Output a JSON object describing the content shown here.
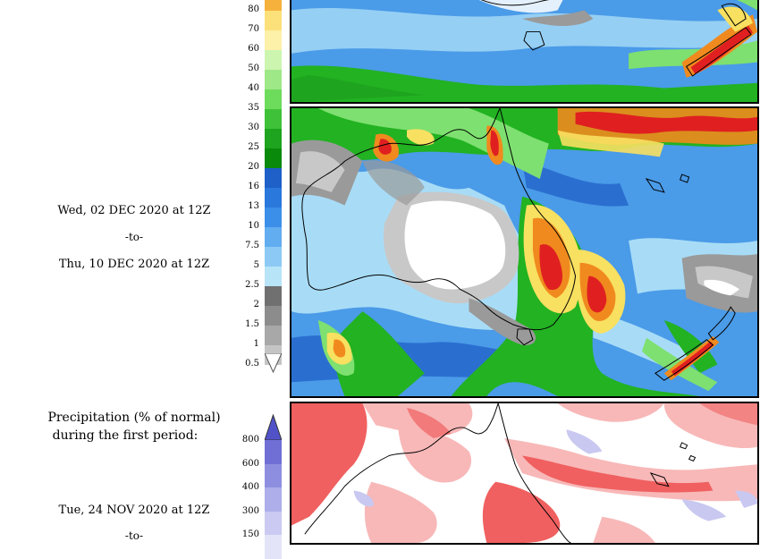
{
  "period_total": {
    "from_label": "Wed, 02 DEC 2020 at 12Z",
    "to_label": "-to-",
    "until_label": "Thu, 10 DEC 2020 at 12Z"
  },
  "anomaly_section": {
    "title_line1": "Precipitation (% of normal)",
    "title_line2": "during the first period:",
    "from_label": "Tue, 24 NOV 2020 at 12Z",
    "to_label": "-to-"
  },
  "precip_scale": {
    "levels": [
      {
        "label": "80",
        "color": "#f5b13c"
      },
      {
        "label": "70",
        "color": "#fce07a"
      },
      {
        "label": "60",
        "color": "#fdf0a8"
      },
      {
        "label": "50",
        "color": "#ccf5b0"
      },
      {
        "label": "40",
        "color": "#9ee888"
      },
      {
        "label": "35",
        "color": "#6ddc5c"
      },
      {
        "label": "30",
        "color": "#3fc23a"
      },
      {
        "label": "25",
        "color": "#1ea41e"
      },
      {
        "label": "20",
        "color": "#0a8a0a"
      },
      {
        "label": "16",
        "color": "#1e5fc8"
      },
      {
        "label": "13",
        "color": "#2a78dc"
      },
      {
        "label": "10",
        "color": "#3c8fe8"
      },
      {
        "label": "7.5",
        "color": "#62acf0"
      },
      {
        "label": "5",
        "color": "#8ccaf5"
      },
      {
        "label": "2.5",
        "color": "#b8e4f8"
      },
      {
        "label": "2",
        "color": "#707070"
      },
      {
        "label": "1.5",
        "color": "#8c8c8c"
      },
      {
        "label": "1",
        "color": "#a8a8a8"
      },
      {
        "label": "0.5",
        "color": "#c4c4c4"
      }
    ]
  },
  "anomaly_scale": {
    "levels": [
      {
        "label": "800",
        "color": "#6f6fd6"
      },
      {
        "label": "600",
        "color": "#8e8ee0"
      },
      {
        "label": "400",
        "color": "#adaeea"
      },
      {
        "label": "300",
        "color": "#cacaf2"
      },
      {
        "label": "150",
        "color": "#e4e4f8"
      }
    ],
    "top_arrow_color": "#5252c8"
  },
  "map_colors": {
    "ocean_blue": "#4a9be8",
    "deep_blue": "#2a6fd0",
    "light_blue": "#a8dcf6",
    "green": "#22b222",
    "light_green": "#7ee070",
    "red": "#e02020",
    "orange": "#f08a1e",
    "yellow": "#f8e060",
    "gray": "#9a9a9a",
    "light_gray": "#c8c8c8",
    "white": "#ffffff",
    "anomaly_red": "#f06060",
    "anomaly_pink": "#f8b8b8",
    "anomaly_blue": "#c8c8f0"
  }
}
